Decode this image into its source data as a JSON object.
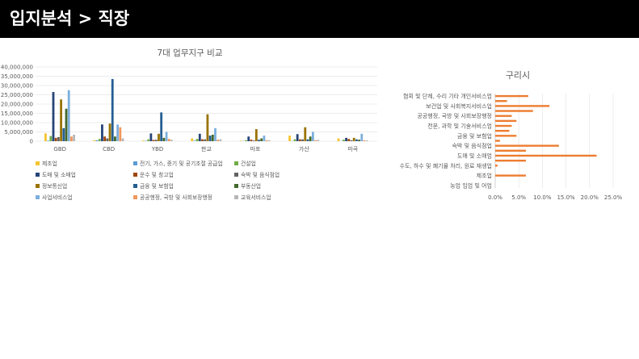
{
  "header": {
    "title": "입지분석 > 직장"
  },
  "chart_data": [
    {
      "type": "bar",
      "title": "7대 업무지구 비교",
      "categories": [
        "GBD",
        "CBD",
        "YBD",
        "판교",
        "마포",
        "가산",
        "마곡"
      ],
      "ylim": [
        0,
        40000000
      ],
      "yticks": [
        0,
        5000000,
        10000000,
        15000000,
        20000000,
        25000000,
        30000000,
        35000000,
        40000000
      ],
      "ytick_labels": [
        "0",
        "5,000,000",
        "10,000,000",
        "15,000,000",
        "20,000,000",
        "25,000,000",
        "30,000,000",
        "35,000,000",
        "40,000,000"
      ],
      "grid": true,
      "legend_position": "bottom",
      "series": [
        {
          "name": "제조업",
          "color": "#f4c42f",
          "values": [
            4200000,
            500000,
            400000,
            1500000,
            300000,
            3000000,
            1500000
          ]
        },
        {
          "name": "전기, 가스, 증기 및 공기조절 공급업",
          "color": "#5b9bd5",
          "values": [
            300000,
            500000,
            200000,
            300000,
            100000,
            100000,
            100000
          ]
        },
        {
          "name": "건설업",
          "color": "#70ad47",
          "values": [
            2800000,
            1200000,
            1000000,
            1200000,
            500000,
            1000000,
            800000
          ]
        },
        {
          "name": "도매 및 소매업",
          "color": "#264478",
          "values": [
            26500000,
            9000000,
            4200000,
            4000000,
            2500000,
            3800000,
            1800000
          ]
        },
        {
          "name": "운수 및 창고업",
          "color": "#9e480e",
          "values": [
            1800000,
            2500000,
            700000,
            1000000,
            800000,
            1000000,
            1200000
          ]
        },
        {
          "name": "숙박 및 음식점업",
          "color": "#636363",
          "values": [
            2200000,
            1500000,
            800000,
            1000000,
            400000,
            1000000,
            500000
          ]
        },
        {
          "name": "정보통신업",
          "color": "#997300",
          "values": [
            22500000,
            9500000,
            4000000,
            14500000,
            6500000,
            7500000,
            1800000
          ]
        },
        {
          "name": "금융 및 보험업",
          "color": "#255e91",
          "values": [
            7000000,
            33500000,
            15500000,
            3000000,
            800000,
            1000000,
            1000000
          ]
        },
        {
          "name": "부동산업",
          "color": "#43682b",
          "values": [
            17500000,
            2500000,
            1800000,
            3500000,
            1500000,
            2500000,
            800000
          ]
        },
        {
          "name": "사업서비스업",
          "color": "#7cafdd",
          "values": [
            27500000,
            9000000,
            5000000,
            7000000,
            3000000,
            5000000,
            4000000
          ]
        },
        {
          "name": "공공행정, 국방 및 사회보장행정",
          "color": "#f1975a",
          "values": [
            2500000,
            7500000,
            1200000,
            800000,
            500000,
            500000,
            500000
          ]
        },
        {
          "name": "교육서비스업",
          "color": "#b7b7b7",
          "values": [
            3500000,
            1500000,
            700000,
            1000000,
            500000,
            700000,
            400000
          ]
        }
      ]
    },
    {
      "type": "bar",
      "orientation": "horizontal",
      "title": "구리시",
      "categories": [
        "협회 및 단체, 수리 기타 개인서비스업",
        "",
        "보건업 및 사회복지서비스업",
        "",
        "공공행정, 국방 및 사회보장행정",
        "",
        "전문, 과학 및 기술서비스업",
        "",
        "금융 및 보험업",
        "",
        "숙박 및 음식점업",
        "",
        "도매 및 소매업",
        "",
        "수도, 하수 및 폐기물 처리, 원료 재생업",
        "",
        "제조업",
        "",
        "농업 임업 및 어업"
      ],
      "values": [
        7.0,
        2.5,
        11.5,
        8.0,
        3.5,
        4.5,
        3.5,
        3.0,
        4.5,
        1.0,
        13.5,
        6.5,
        21.5,
        6.5,
        0.5,
        0,
        6.5,
        0,
        0
      ],
      "xlim": [
        0,
        25
      ],
      "xticks": [
        0,
        5,
        10,
        15,
        20,
        25
      ],
      "xtick_labels": [
        "0.0%",
        "5.0%",
        "10.0%",
        "15.0%",
        "20.0%",
        "25.0%"
      ],
      "unit": "%",
      "color": "#ed7d31",
      "grid": true
    }
  ]
}
